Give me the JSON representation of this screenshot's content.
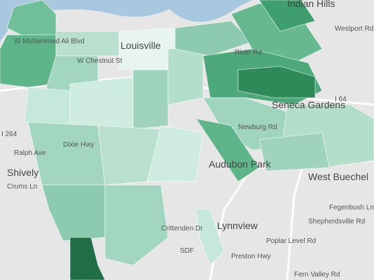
{
  "map": {
    "labels": [
      "Indian Hills",
      "River Rd",
      "Westport Rd",
      "Louisville",
      "W Muhammad Ali Blvd",
      "W Chestnut St",
      "I 64",
      "I 264",
      "Seneca Gardens",
      "Newburg Rd",
      "Audubon Park",
      "West Buechel",
      "Shively",
      "Ralph Ave",
      "Dixie Hwy",
      "Crums Ln",
      "Lynnview",
      "SDF",
      "Crittenden Dr",
      "Poplar Level Rd",
      "Preston Hwy",
      "Shepherdsville Rd",
      "Fegenbush Ln",
      "Fern Valley Rd"
    ]
  }
}
